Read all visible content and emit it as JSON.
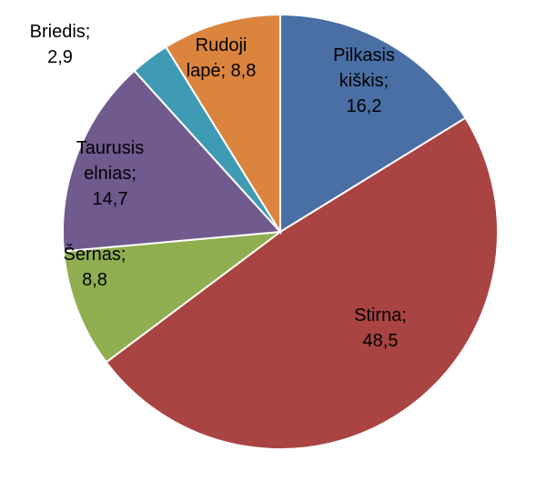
{
  "chart_data": {
    "type": "pie",
    "legend": "none",
    "slices": [
      {
        "label": "Pilkasis kiškis",
        "value": 16.2,
        "value_text": "16,2",
        "color": "#4A6FA5",
        "lines": [
          "Pilkasis",
          "kiškis;",
          "16,2"
        ]
      },
      {
        "label": "Stirna",
        "value": 48.5,
        "value_text": "48,5",
        "color": "#A94442",
        "lines": [
          "Stirna;",
          "48,5"
        ]
      },
      {
        "label": "Šernas",
        "value": 8.8,
        "value_text": "8,8",
        "color": "#8FAE4F",
        "lines": [
          "Šernas;",
          "8,8"
        ]
      },
      {
        "label": "Taurusis elnias",
        "value": 14.7,
        "value_text": "14,7",
        "color": "#705A8E",
        "lines": [
          "Taurusis",
          "elnias;",
          "14,7"
        ]
      },
      {
        "label": "Briedis",
        "value": 2.9,
        "value_text": "2,9",
        "color": "#3F9BB3",
        "lines": [
          "Briedis;",
          "2,9"
        ]
      },
      {
        "label": "Rudoji lapė",
        "value": 8.8,
        "value_text": "8,8",
        "color": "#DB843D",
        "lines": [
          "Rudoji",
          "lapė; 8,8"
        ]
      }
    ]
  }
}
